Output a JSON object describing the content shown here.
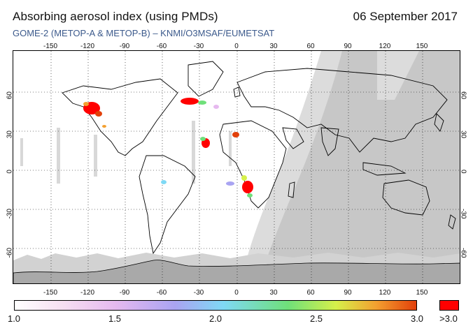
{
  "header": {
    "title": "Absorbing aerosol index (using PMDs)",
    "date": "06 September 2017",
    "subtitle": "GOME-2 (METOP-A & METOP-B)  –  KNMI/O3MSAF/EUMETSAT"
  },
  "map": {
    "lon_ticks": [
      "-150",
      "-120",
      "-90",
      "-60",
      "-30",
      "0",
      "30",
      "60",
      "90",
      "120",
      "150"
    ],
    "lat_ticks_left": [
      "60",
      "30",
      "0",
      "-30",
      "-60"
    ],
    "lat_ticks_right": [
      "60",
      "30",
      "0",
      "-30",
      "-60"
    ],
    "colors": {
      "ocean": "#ffffff",
      "land_outline": "#000000",
      "night_shade": "#b4b4b4",
      "swath_gap": "#d4d4d4",
      "high_aerosol": "#ff0000"
    }
  },
  "colorbar": {
    "labels": [
      "1.0",
      "1.5",
      "2.0",
      "2.5",
      "3.0"
    ],
    "overflow_label": ">3.0",
    "overflow_color": "#ff0000"
  }
}
